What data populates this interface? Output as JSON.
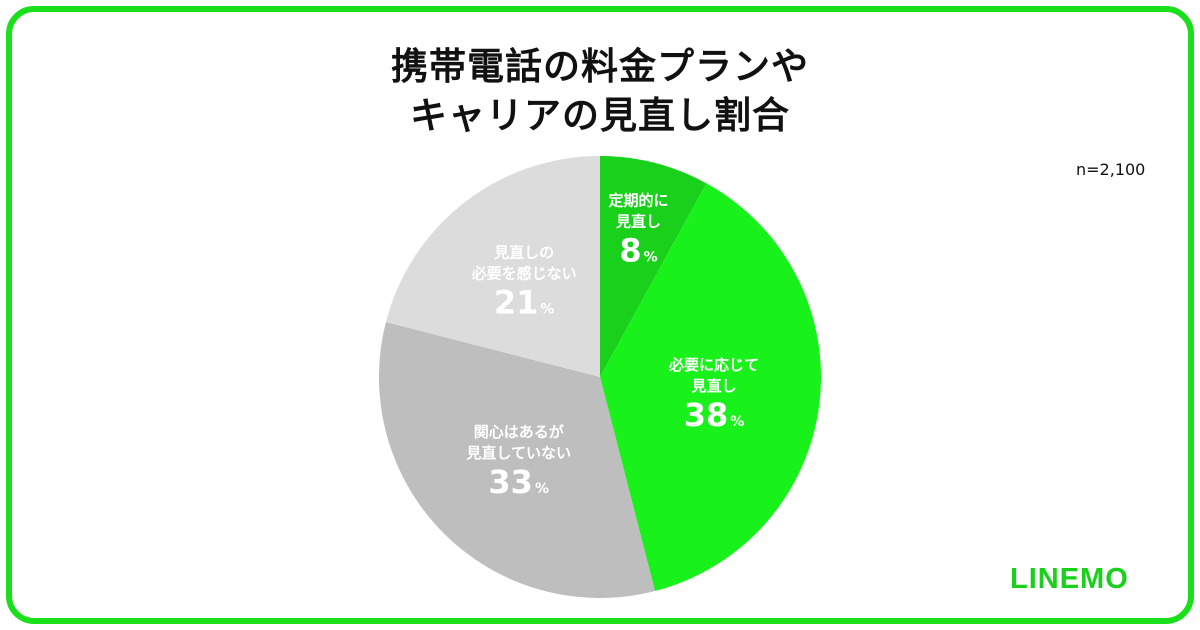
{
  "title_lines": [
    "携帯電話の料金プランや",
    "キャリアの見直し割合"
  ],
  "sample_size": "n=2,100",
  "logo_text": "LINEMO",
  "colors": {
    "brand_green": "#19e01a",
    "logo_green": "#19d11a"
  },
  "chart_data": {
    "type": "pie",
    "title": "携帯電話の料金プランやキャリアの見直し割合",
    "start": "12 o'clock, clockwise",
    "unit": "%",
    "slices": [
      {
        "label_lines": [
          "定期的に",
          "見直し"
        ],
        "value": 8,
        "color": "#19d11a"
      },
      {
        "label_lines": [
          "必要に応じて",
          "見直し"
        ],
        "value": 38,
        "color": "#19f21a"
      },
      {
        "label_lines": [
          "関心はあるが",
          "見直していない"
        ],
        "value": 33,
        "color": "#bebebe"
      },
      {
        "label_lines": [
          "見直しの",
          "必要を感じない"
        ],
        "value": 21,
        "color": "#dcdcdc"
      }
    ]
  }
}
